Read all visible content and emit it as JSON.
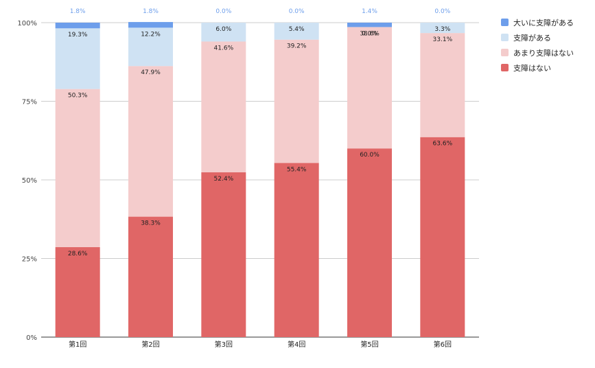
{
  "chart_data": {
    "type": "bar",
    "stacked": true,
    "percent": true,
    "categories": [
      "第1回",
      "第2回",
      "第3回",
      "第4回",
      "第5回",
      "第6回"
    ],
    "series": [
      {
        "name": "支障はない",
        "color": "#e06666",
        "values": [
          28.6,
          38.3,
          52.4,
          55.4,
          60.0,
          63.6
        ],
        "labels": [
          "28.6%",
          "38.3%",
          "52.4%",
          "55.4%",
          "60.0%",
          "63.6%"
        ]
      },
      {
        "name": "あまり支障はない",
        "color": "#f4cccc",
        "values": [
          50.3,
          47.9,
          41.6,
          39.2,
          38.6,
          33.1
        ],
        "labels": [
          "50.3%",
          "47.9%",
          "41.6%",
          "39.2%",
          "38.6%",
          "33.1%"
        ]
      },
      {
        "name": "支障がある",
        "color": "#cfe2f3",
        "values": [
          19.3,
          12.2,
          6.0,
          5.4,
          0.0,
          3.3
        ],
        "labels": [
          "19.3%",
          "12.2%",
          "6.0%",
          "5.4%",
          "0.0%",
          "3.3%"
        ]
      },
      {
        "name": "大いに支障がある",
        "color": "#6d9eeb",
        "values": [
          1.8,
          1.8,
          0.0,
          0.0,
          1.4,
          0.0
        ],
        "labels": [
          "1.8%",
          "1.8%",
          "0.0%",
          "0.0%",
          "1.4%",
          "0.0%"
        ]
      }
    ],
    "legend_order": [
      "大いに支障がある",
      "支障がある",
      "あまり支障はない",
      "支障はない"
    ],
    "ylim": [
      0,
      100
    ],
    "yticks": [
      "0%",
      "25%",
      "50%",
      "75%",
      "100%"
    ],
    "legend": "right",
    "grid": true
  }
}
